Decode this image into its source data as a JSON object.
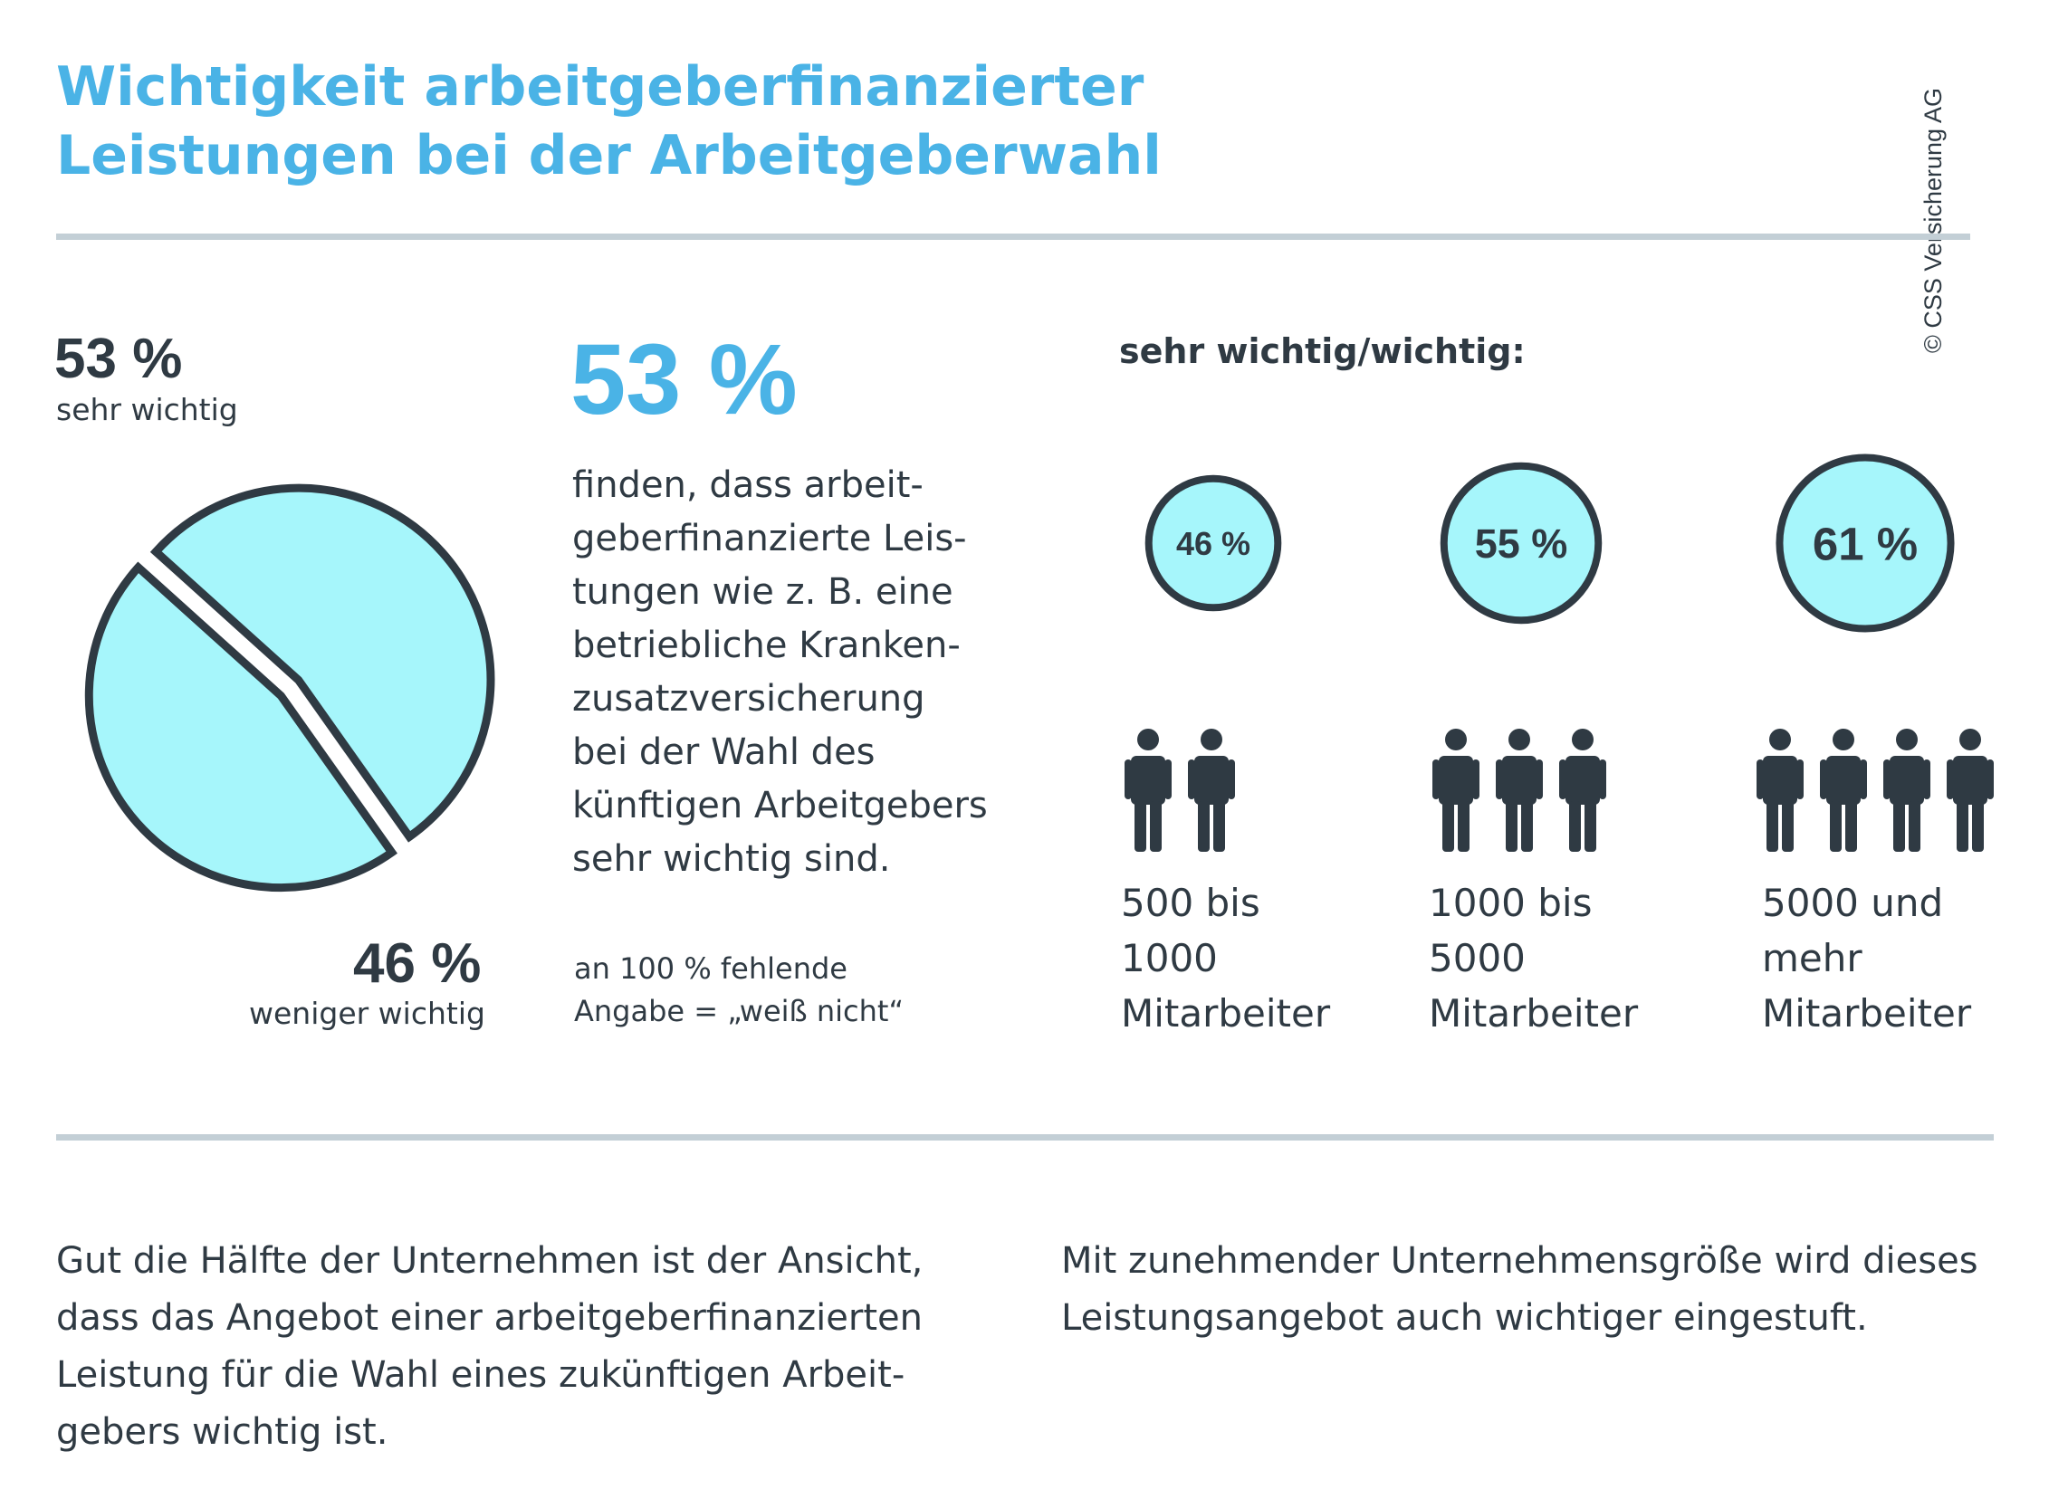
{
  "title_line1": "Wichtigkeit arbeitgeberfinanzierter",
  "title_line2": "Leistungen bei der Arbeitgeberwahl",
  "copyright": "© CSS Versicherung AG",
  "colors": {
    "accent": "#4ab3e6",
    "fill": "#a6f6fb",
    "dark": "#2f3a43",
    "rule": "#c3cfd6"
  },
  "pie": {
    "top_value": "53 %",
    "top_label": "sehr wichtig",
    "bottom_value": "46 %",
    "bottom_label": "weniger wichtig"
  },
  "headline_value": "53 %",
  "body_lines": [
    "finden, dass arbeit-",
    "geberfinanzierte Leis-",
    "tungen wie z. B. eine",
    "betriebliche Kranken-",
    "zusatzversicherung",
    "bei der Wahl des",
    "künftigen Arbeitgebers",
    "sehr wichtig sind."
  ],
  "footnote_line1": "an 100 % fehlende",
  "footnote_line2": "Angabe = „weiß nicht“",
  "subhead": "sehr wichtig/wichtig:",
  "size_groups": [
    {
      "value_label": "46 %",
      "category": "500 bis\n1000\nMitarbeiter",
      "icon": "person-icon",
      "icon_count": 2
    },
    {
      "value_label": "55 %",
      "category": "1000 bis\n5000\nMitarbeiter",
      "icon": "person-icon",
      "icon_count": 3
    },
    {
      "value_label": "61 %",
      "category": "5000 und\nmehr\nMitarbeiter",
      "icon": "person-icon",
      "icon_count": 4
    }
  ],
  "bottom_left": [
    "Gut die Hälfte der Unternehmen ist der Ansicht,",
    "dass das Angebot einer arbeitgeberfinanzierten",
    "Leistung für die Wahl eines zukünftigen Arbeit-",
    "gebers wichtig ist."
  ],
  "bottom_right": [
    "Mit zunehmender Unternehmensgröße wird dieses",
    "Leistungsangebot auch wichtiger eingestuft."
  ],
  "chart_data": [
    {
      "type": "pie",
      "categories": [
        "sehr wichtig",
        "weniger wichtig"
      ],
      "values": [
        53,
        46
      ]
    },
    {
      "type": "bubble",
      "categories": [
        "500 bis 1000 Mitarbeiter",
        "1000 bis 5000 Mitarbeiter",
        "5000 und mehr Mitarbeiter"
      ],
      "values": [
        46,
        55,
        61
      ],
      "title": "sehr wichtig/wichtig:"
    }
  ]
}
